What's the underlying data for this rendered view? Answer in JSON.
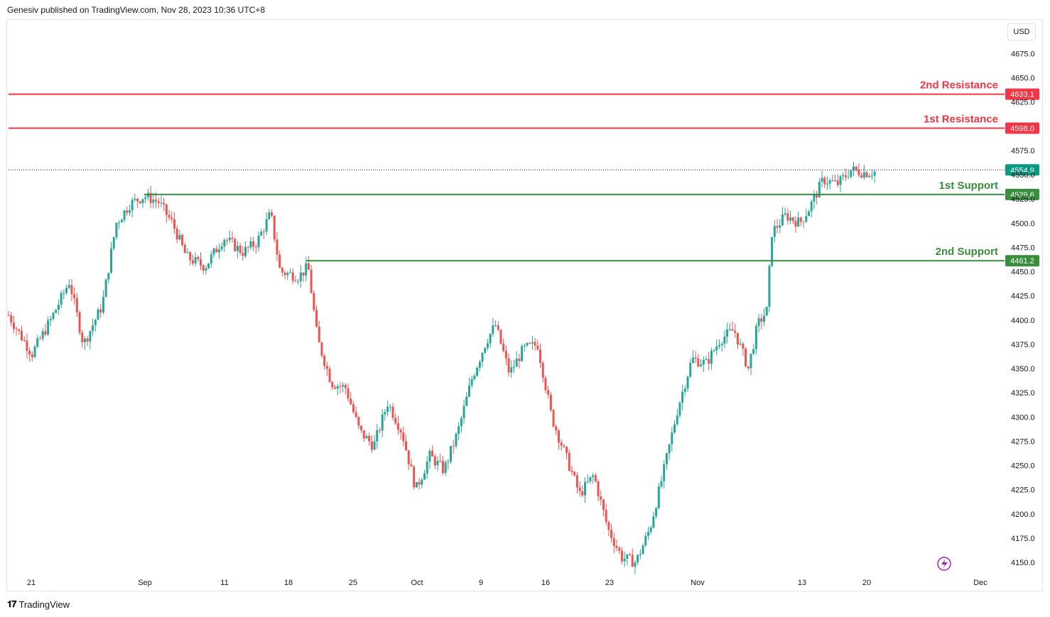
{
  "header": {
    "published": "Genesiv published on TradingView.com, Nov 28, 2023 10:36 UTC+8"
  },
  "currency": "USD",
  "footer": {
    "brand": "TradingView",
    "logo_icon": "tradingview-logo-icon"
  },
  "colors": {
    "up": "#26a69a",
    "down": "#ef5350",
    "resistance": "#f23645",
    "support": "#388e3c",
    "last": "#089981"
  },
  "chart_data": {
    "type": "candlestick",
    "ylim": [
      4140,
      4690
    ],
    "y_ticks": [
      4150.0,
      4175.0,
      4200.0,
      4225.0,
      4250.0,
      4275.0,
      4300.0,
      4325.0,
      4350.0,
      4375.0,
      4400.0,
      4425.0,
      4450.0,
      4475.0,
      4500.0,
      4525.0,
      4550.0,
      4575.0,
      4625.0,
      4650.0,
      4675.0
    ],
    "x_ticks": [
      "21",
      "Sep",
      "11",
      "18",
      "25",
      "Oct",
      "9",
      "16",
      "23",
      "Nov",
      "13",
      "20",
      "Dec"
    ],
    "last_price": {
      "value": 4554.9,
      "label": "4554.9"
    },
    "levels": [
      {
        "name": "2nd Resistance",
        "value": 4633.1,
        "label": "4633.1",
        "kind": "resistance",
        "start": 0
      },
      {
        "name": "1st Resistance",
        "value": 4598.0,
        "label": "4598.0",
        "kind": "resistance",
        "start": 0
      },
      {
        "name": "1st Support",
        "value": 4529.6,
        "label": "4529.6",
        "kind": "support",
        "start": 0.145
      },
      {
        "name": "2nd Support",
        "value": 4461.2,
        "label": "4461.2",
        "kind": "support",
        "start": 0.318
      }
    ],
    "path": [
      [
        0,
        4405
      ],
      [
        0.025,
        4365
      ],
      [
        0.045,
        4400
      ],
      [
        0.065,
        4440
      ],
      [
        0.08,
        4375
      ],
      [
        0.1,
        4415
      ],
      [
        0.115,
        4500
      ],
      [
        0.13,
        4520
      ],
      [
        0.145,
        4528
      ],
      [
        0.16,
        4522
      ],
      [
        0.175,
        4500
      ],
      [
        0.19,
        4465
      ],
      [
        0.21,
        4455
      ],
      [
        0.23,
        4485
      ],
      [
        0.25,
        4470
      ],
      [
        0.265,
        4480
      ],
      [
        0.28,
        4510
      ],
      [
        0.29,
        4450
      ],
      [
        0.31,
        4445
      ],
      [
        0.32,
        4455
      ],
      [
        0.33,
        4380
      ],
      [
        0.345,
        4335
      ],
      [
        0.36,
        4330
      ],
      [
        0.375,
        4285
      ],
      [
        0.39,
        4270
      ],
      [
        0.405,
        4315
      ],
      [
        0.42,
        4285
      ],
      [
        0.435,
        4225
      ],
      [
        0.45,
        4260
      ],
      [
        0.465,
        4245
      ],
      [
        0.48,
        4285
      ],
      [
        0.495,
        4340
      ],
      [
        0.51,
        4378
      ],
      [
        0.52,
        4395
      ],
      [
        0.535,
        4345
      ],
      [
        0.55,
        4370
      ],
      [
        0.565,
        4375
      ],
      [
        0.58,
        4300
      ],
      [
        0.595,
        4260
      ],
      [
        0.61,
        4220
      ],
      [
        0.625,
        4240
      ],
      [
        0.64,
        4185
      ],
      [
        0.655,
        4155
      ],
      [
        0.67,
        4150
      ],
      [
        0.685,
        4185
      ],
      [
        0.7,
        4245
      ],
      [
        0.715,
        4310
      ],
      [
        0.73,
        4360
      ],
      [
        0.745,
        4355
      ],
      [
        0.76,
        4380
      ],
      [
        0.775,
        4390
      ],
      [
        0.79,
        4350
      ],
      [
        0.8,
        4395
      ],
      [
        0.81,
        4410
      ],
      [
        0.815,
        4490
      ],
      [
        0.83,
        4508
      ],
      [
        0.845,
        4500
      ],
      [
        0.855,
        4515
      ],
      [
        0.87,
        4545
      ],
      [
        0.885,
        4540
      ],
      [
        0.9,
        4555
      ],
      [
        0.915,
        4552
      ],
      [
        0.925,
        4553
      ]
    ]
  }
}
